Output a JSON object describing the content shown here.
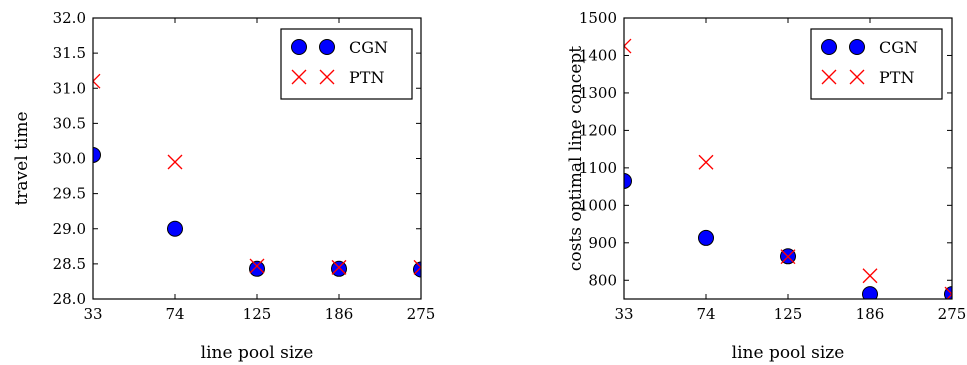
{
  "chart_data": [
    {
      "type": "scatter",
      "title": "",
      "xlabel": "line pool size",
      "ylabel": "travel time",
      "categories": [
        "33",
        "74",
        "125",
        "186",
        "275"
      ],
      "ylim": [
        28.0,
        32.0
      ],
      "yticks": [
        "28.0",
        "28.5",
        "29.0",
        "29.5",
        "30.0",
        "30.5",
        "31.0",
        "31.5",
        "32.0"
      ],
      "grid": false,
      "legend_position": "top-right",
      "series": [
        {
          "name": "CGN",
          "marker": "circle",
          "color": "#0000ff",
          "values": [
            30.05,
            29.0,
            28.43,
            28.43,
            28.42
          ]
        },
        {
          "name": "PTN",
          "marker": "x",
          "color": "#ff0000",
          "values": [
            31.1,
            29.95,
            28.47,
            28.45,
            28.45
          ]
        }
      ]
    },
    {
      "type": "scatter",
      "title": "",
      "xlabel": "line pool size",
      "ylabel": "costs optimal line concept",
      "categories": [
        "33",
        "74",
        "125",
        "186",
        "275"
      ],
      "ylim": [
        750,
        1500
      ],
      "yticks": [
        "800",
        "900",
        "1000",
        "1100",
        "1200",
        "1300",
        "1400",
        "1500"
      ],
      "grid": false,
      "legend_position": "top-right",
      "series": [
        {
          "name": "CGN",
          "marker": "circle",
          "color": "#0000ff",
          "values": [
            1065,
            913,
            864,
            763,
            763
          ]
        },
        {
          "name": "PTN",
          "marker": "x",
          "color": "#ff0000",
          "values": [
            1425,
            1115,
            863,
            812,
            763
          ]
        }
      ]
    }
  ]
}
